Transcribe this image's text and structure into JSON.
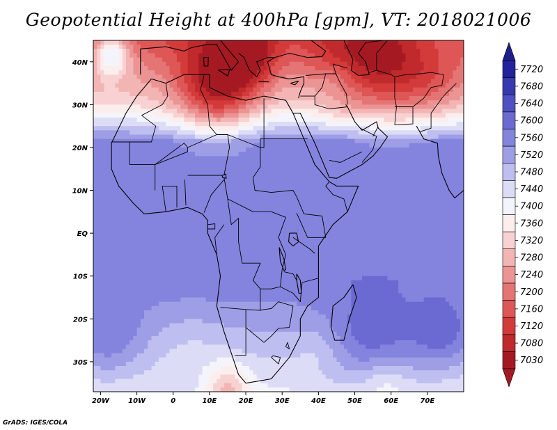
{
  "chart_data": {
    "type": "heatmap",
    "title": "Geopotential Height at 400hPa [gpm], VT: 2018021006",
    "variable": "Geopotential Height",
    "level": "400hPa",
    "units": "gpm",
    "valid_time": "2018021006",
    "xlim": [
      -22,
      80
    ],
    "ylim": [
      -37,
      45
    ],
    "x_ticks": [
      {
        "value": -20,
        "label": "20W"
      },
      {
        "value": -10,
        "label": "10W"
      },
      {
        "value": 0,
        "label": "0"
      },
      {
        "value": 10,
        "label": "10E"
      },
      {
        "value": 20,
        "label": "20E"
      },
      {
        "value": 30,
        "label": "30E"
      },
      {
        "value": 40,
        "label": "40E"
      },
      {
        "value": 50,
        "label": "50E"
      },
      {
        "value": 60,
        "label": "60E"
      },
      {
        "value": 70,
        "label": "70E"
      }
    ],
    "y_ticks": [
      {
        "value": 40,
        "label": "40N"
      },
      {
        "value": 30,
        "label": "30N"
      },
      {
        "value": 20,
        "label": "20N"
      },
      {
        "value": 10,
        "label": "10N"
      },
      {
        "value": 0,
        "label": "EQ"
      },
      {
        "value": -10,
        "label": "10S"
      },
      {
        "value": -20,
        "label": "20S"
      },
      {
        "value": -30,
        "label": "30S"
      }
    ],
    "colorbar": {
      "levels": [
        7030,
        7080,
        7120,
        7160,
        7200,
        7240,
        7280,
        7320,
        7360,
        7400,
        7440,
        7480,
        7520,
        7560,
        7600,
        7640,
        7680,
        7720
      ],
      "colors": [
        "#a51a22",
        "#c12a2c",
        "#d33a3a",
        "#de5656",
        "#e57474",
        "#ec9494",
        "#f3b4b4",
        "#f8d2d2",
        "#fdeeee",
        "#f4f4fc",
        "#dcdcf6",
        "#bebef0",
        "#9e9ee6",
        "#8484de",
        "#6a6ad2",
        "#5050c2",
        "#3838b0",
        "#22229c"
      ],
      "low_arrow_color": "#a51a22",
      "high_arrow_color": "#1f1f8a"
    },
    "field_features": [
      {
        "lon": 12,
        "lat": 37,
        "value": 7040,
        "radius": 11
      },
      {
        "lon": 20,
        "lat": 44,
        "value": 7030,
        "radius": 8
      },
      {
        "lon": 58,
        "lat": 43,
        "value": 7060,
        "radius": 13
      },
      {
        "lon": 45,
        "lat": 45,
        "value": 7130,
        "radius": 9
      },
      {
        "lon": 72,
        "lat": 40,
        "value": 7200,
        "radius": 10
      },
      {
        "lon": 45,
        "lat": 34,
        "value": 7340,
        "radius": 6
      },
      {
        "lon": -17,
        "lat": 41,
        "value": 7440,
        "radius": 5
      },
      {
        "lon": 55,
        "lat": -22,
        "value": 7625,
        "radius": 12
      },
      {
        "lon": 74,
        "lat": -22,
        "value": 7620,
        "radius": 9
      },
      {
        "lon": -18,
        "lat": -22,
        "value": 7600,
        "radius": 10
      },
      {
        "lon": 40,
        "lat": -30,
        "value": 7460,
        "radius": 6
      },
      {
        "lon": 58,
        "lat": -36,
        "value": 7390,
        "radius": 6
      },
      {
        "lon": 5,
        "lat": -33,
        "value": 7460,
        "radius": 10
      },
      {
        "lon": 15,
        "lat": -37,
        "value": 7300,
        "radius": 6
      }
    ]
  },
  "footer": "GrADS: IGES/COLA"
}
